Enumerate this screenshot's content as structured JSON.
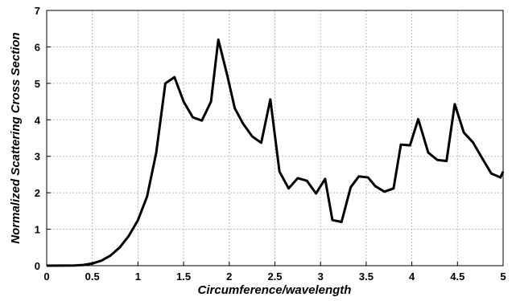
{
  "chart_data": {
    "type": "line",
    "xlabel": "Circumference/wavelength",
    "ylabel": "Normalized Scattering Cross Section",
    "x": [
      0,
      0.3,
      0.4,
      0.5,
      0.6,
      0.7,
      0.8,
      0.9,
      1.0,
      1.1,
      1.2,
      1.3,
      1.4,
      1.5,
      1.6,
      1.7,
      1.8,
      1.88,
      1.98,
      2.06,
      2.15,
      2.25,
      2.35,
      2.45,
      2.55,
      2.65,
      2.75,
      2.85,
      2.95,
      3.05,
      3.13,
      3.23,
      3.33,
      3.42,
      3.52,
      3.6,
      3.7,
      3.8,
      3.88,
      3.98,
      4.07,
      4.18,
      4.28,
      4.38,
      4.47,
      4.57,
      4.67,
      4.77,
      4.87,
      4.97,
      5.0
    ],
    "series": [
      {
        "name": "cross-section",
        "color": "#000000",
        "values": [
          0,
          0.005,
          0.02,
          0.06,
          0.14,
          0.28,
          0.5,
          0.82,
          1.25,
          1.9,
          3.1,
          5.0,
          5.17,
          4.5,
          4.07,
          3.98,
          4.5,
          6.2,
          5.2,
          4.32,
          3.9,
          3.55,
          3.37,
          4.56,
          2.58,
          2.12,
          2.4,
          2.33,
          1.98,
          2.38,
          1.25,
          1.2,
          2.15,
          2.45,
          2.42,
          2.18,
          2.03,
          2.12,
          3.32,
          3.3,
          4.02,
          3.1,
          2.9,
          2.87,
          4.43,
          3.65,
          3.38,
          2.95,
          2.53,
          2.42,
          2.58
        ]
      }
    ],
    "xlim": [
      0,
      5
    ],
    "xticks": [
      0,
      0.5,
      1,
      1.5,
      2,
      2.5,
      3,
      3.5,
      4,
      4.5,
      5
    ],
    "ylim": [
      0,
      7
    ],
    "yticks": [
      0,
      1,
      2,
      3,
      4,
      5,
      6,
      7
    ],
    "grid": true
  }
}
